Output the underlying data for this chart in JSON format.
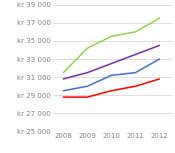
{
  "years": [
    2008,
    2009,
    2010,
    2011,
    2012
  ],
  "series": [
    {
      "name": "Green",
      "color": "#92d050",
      "values": [
        31500,
        34200,
        35500,
        36000,
        37500
      ]
    },
    {
      "name": "Purple",
      "color": "#7030a0",
      "values": [
        30800,
        31500,
        32500,
        33500,
        34500
      ]
    },
    {
      "name": "Blue",
      "color": "#4472c4",
      "values": [
        29500,
        30000,
        31200,
        31500,
        33000
      ]
    },
    {
      "name": "Red",
      "color": "#ff0000",
      "values": [
        28800,
        28800,
        29500,
        30000,
        30800
      ]
    }
  ],
  "ylim": [
    25000,
    39000
  ],
  "yticks": [
    25000,
    27000,
    29000,
    31000,
    33000,
    35000,
    37000,
    39000
  ],
  "xticks": [
    2008,
    2009,
    2010,
    2011,
    2012
  ],
  "background_color": "#ffffff",
  "grid_color": "#d0d0d0",
  "tick_label_color": "#808080",
  "tick_fontsize": 5.0,
  "line_width": 1.1
}
